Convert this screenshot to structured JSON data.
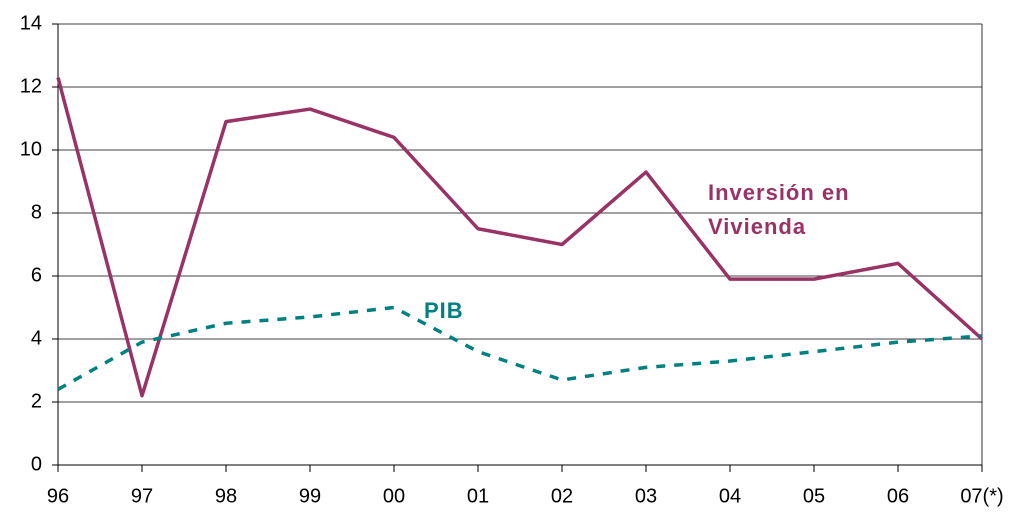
{
  "chart_data": {
    "type": "line",
    "categories": [
      "96",
      "97",
      "98",
      "99",
      "00",
      "01",
      "02",
      "03",
      "04",
      "05",
      "06",
      "07(*)"
    ],
    "series": [
      {
        "name": "Inversión en Vivienda",
        "color": "#993366",
        "dash": false,
        "values": [
          12.3,
          2.2,
          10.9,
          11.3,
          10.4,
          7.5,
          7.0,
          9.3,
          5.9,
          5.9,
          6.4,
          4.0
        ]
      },
      {
        "name": "PIB",
        "color": "#008080",
        "dash": true,
        "values": [
          2.4,
          3.9,
          4.5,
          4.7,
          5.0,
          3.6,
          2.7,
          3.1,
          3.3,
          3.6,
          3.9,
          4.1
        ]
      }
    ],
    "ylim": [
      0,
      14
    ],
    "yticks": [
      0,
      2,
      4,
      6,
      8,
      10,
      12,
      14
    ],
    "grid": true
  }
}
